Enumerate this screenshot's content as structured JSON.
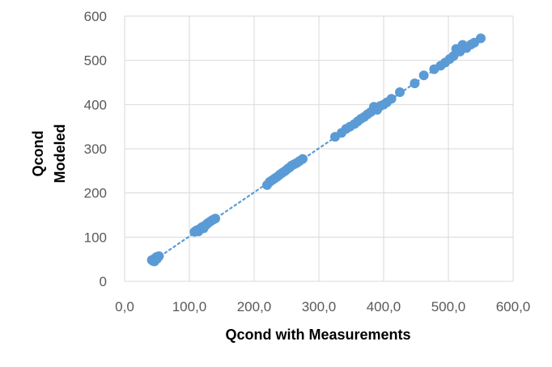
{
  "chart_data": {
    "type": "scatter",
    "title": "",
    "xlabel": "Qcond with Measurements",
    "ylabel_lines": [
      "Qcond",
      "Modeled"
    ],
    "xlim": [
      0,
      600
    ],
    "ylim": [
      0,
      600
    ],
    "xticks": [
      "0,0",
      "100,0",
      "200,0",
      "300,0",
      "400,0",
      "500,0",
      "600,0"
    ],
    "yticks": [
      "0",
      "100",
      "200",
      "300",
      "400",
      "500",
      "600"
    ],
    "xtick_values": [
      0,
      100,
      200,
      300,
      400,
      500,
      600
    ],
    "ytick_values": [
      0,
      100,
      200,
      300,
      400,
      500,
      600
    ],
    "grid": true,
    "legend": "none",
    "trendline": {
      "style": "dotted",
      "x": [
        42,
        550
      ],
      "y": [
        44,
        550
      ]
    },
    "colors": {
      "marker": "#5b9bd5",
      "trendline": "#5b9bd5",
      "grid": "#d9d9d9",
      "tick_text": "#595959"
    },
    "series": [
      {
        "x": [
          42,
          44,
          45,
          46,
          47,
          48,
          49,
          50,
          51,
          53,
          108,
          110,
          112,
          114,
          116,
          118,
          120,
          122,
          124,
          126,
          128,
          130,
          133,
          136,
          140,
          220,
          224,
          228,
          232,
          236,
          240,
          244,
          248,
          252,
          255,
          258,
          262,
          266,
          270,
          275,
          325,
          335,
          342,
          348,
          355,
          360,
          365,
          370,
          375,
          380,
          385,
          390,
          395,
          400,
          405,
          412,
          425,
          448,
          462,
          478,
          488,
          495,
          502,
          508,
          512,
          518,
          522,
          528,
          535,
          540,
          550
        ],
        "y": [
          48,
          46,
          50,
          45,
          52,
          49,
          55,
          51,
          54,
          57,
          112,
          114,
          116,
          113,
          118,
          121,
          123,
          120,
          126,
          128,
          131,
          133,
          136,
          139,
          142,
          218,
          225,
          229,
          233,
          237,
          242,
          246,
          250,
          255,
          258,
          262,
          265,
          268,
          272,
          277,
          327,
          336,
          345,
          350,
          356,
          362,
          368,
          372,
          378,
          383,
          395,
          388,
          397,
          400,
          405,
          413,
          428,
          448,
          466,
          480,
          488,
          495,
          503,
          510,
          526,
          520,
          535,
          528,
          536,
          540,
          550
        ]
      }
    ]
  }
}
